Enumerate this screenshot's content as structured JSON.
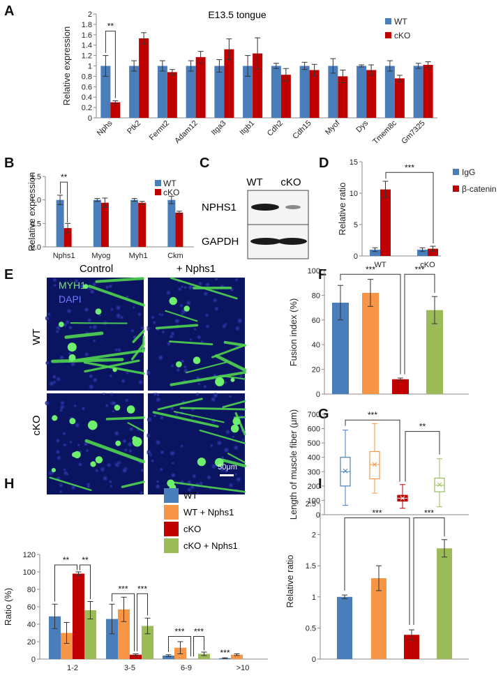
{
  "colors": {
    "wt": "#4a7ebb",
    "cko": "#c00000",
    "wt_nphs1": "#f79646",
    "cko_nphs1": "#9bbb59"
  },
  "panels": {
    "A": "A",
    "B": "B",
    "C": "C",
    "D": "D",
    "E": "E",
    "F": "F",
    "G": "G",
    "H": "H",
    "I": "I"
  },
  "blot": {
    "lane_labels": [
      "WT",
      "cKO"
    ],
    "row_labels": [
      "NPHS1",
      "GAPDH"
    ]
  },
  "micro": {
    "col_labels": [
      "Control",
      "+ Nphs1"
    ],
    "row_labels": [
      "WT",
      "cKO"
    ],
    "stain_labels": [
      "MYH1",
      "DAPI"
    ],
    "scale_bar": "50μm"
  },
  "legend_main": [
    "WT",
    "WT + Nphs1",
    "cKO",
    "cKO + Nphs1"
  ],
  "chart_data": [
    {
      "panel": "A",
      "type": "bar",
      "title": "E13.5 tongue",
      "xlabel": "",
      "ylabel": "Relative expression",
      "ylim": [
        0,
        2
      ],
      "yticks": [
        "0",
        "0.2",
        "0.4",
        "0.6",
        "0.8",
        "1",
        "1.2",
        "1.4",
        "1.6",
        "1.8",
        "2"
      ],
      "categories": [
        "Nphs",
        "Ptk2",
        "Fermt2",
        "Adam12",
        "Itga3",
        "Itgb1",
        "Cdh2",
        "Cdh15",
        "Myof",
        "Dys",
        "Tmem8c",
        "Gm7325"
      ],
      "series": [
        {
          "name": "WT",
          "values": [
            1.0,
            1.0,
            1.0,
            1.0,
            1.0,
            1.0,
            1.0,
            1.0,
            1.0,
            1.0,
            1.0,
            1.0
          ],
          "errors": [
            0.2,
            0.1,
            0.1,
            0.1,
            0.12,
            0.2,
            0.05,
            0.07,
            0.14,
            0.02,
            0.1,
            0.05
          ]
        },
        {
          "name": "cKO",
          "values": [
            0.3,
            1.53,
            0.88,
            1.17,
            1.32,
            1.24,
            0.83,
            0.92,
            0.8,
            0.92,
            0.76,
            1.02
          ],
          "errors": [
            0.03,
            0.11,
            0.05,
            0.11,
            0.2,
            0.3,
            0.12,
            0.11,
            0.12,
            0.1,
            0.06,
            0.06
          ]
        }
      ],
      "annotations": [
        {
          "text": "**",
          "from": 0,
          "to": 0
        }
      ]
    },
    {
      "panel": "B",
      "type": "bar",
      "xlabel": "",
      "ylabel": "Relative expression",
      "ylim": [
        0,
        1.5
      ],
      "yticks": [
        "0.0",
        "0.5",
        "1.0",
        "1.5"
      ],
      "categories": [
        "Nphs1",
        "Myog",
        "Myh1",
        "Ckm"
      ],
      "series": [
        {
          "name": "WT",
          "values": [
            1.0,
            1.0,
            1.0,
            1.0
          ],
          "errors": [
            0.1,
            0.03,
            0.03,
            0.08
          ]
        },
        {
          "name": "cKO",
          "values": [
            0.4,
            0.94,
            0.94,
            0.73
          ],
          "errors": [
            0.1,
            0.1,
            0.03,
            0.03
          ]
        }
      ],
      "annotations": [
        {
          "text": "**"
        }
      ]
    },
    {
      "panel": "D",
      "type": "bar",
      "xlabel": "",
      "ylabel": "Relative ratio",
      "ylim": [
        0,
        15
      ],
      "yticks": [
        "0",
        "5",
        "10",
        "15"
      ],
      "categories": [
        "WT",
        "cKO"
      ],
      "series": [
        {
          "name": "IgG",
          "values": [
            1.0,
            1.0
          ],
          "errors": [
            0.3,
            0.3
          ]
        },
        {
          "name": "β-catenin",
          "values": [
            10.6,
            1.15
          ],
          "errors": [
            1.3,
            0.4
          ]
        }
      ],
      "annotations": [
        {
          "text": "***"
        }
      ]
    },
    {
      "panel": "F",
      "type": "bar",
      "xlabel": "",
      "ylabel": "Fusion index (%)",
      "ylim": [
        0,
        100
      ],
      "yticks": [
        "0",
        "20",
        "40",
        "60",
        "80",
        "100"
      ],
      "categories": [
        "WT",
        "WT + Nphs1",
        "cKO",
        "cKO + Nphs1"
      ],
      "values": [
        74,
        82,
        12,
        68
      ],
      "errors": [
        14,
        11,
        1,
        11
      ],
      "annotations": [
        {
          "text": "***"
        },
        {
          "text": "***"
        }
      ]
    },
    {
      "panel": "G",
      "type": "box",
      "xlabel": "",
      "ylabel": "Length of muscle fiber (μm)",
      "ylim": [
        0,
        700
      ],
      "yticks": [
        "0",
        "100",
        "200",
        "300",
        "400",
        "500",
        "600",
        "700"
      ],
      "categories": [
        "WT",
        "WT + Nphs1",
        "cKO",
        "cKO + Nphs1"
      ],
      "boxes": [
        {
          "min": 65,
          "q1": 200,
          "median": 300,
          "q3": 400,
          "max": 590,
          "mean": 305
        },
        {
          "min": 150,
          "q1": 250,
          "median": 350,
          "q3": 440,
          "max": 635,
          "mean": 350
        },
        {
          "min": 45,
          "q1": 95,
          "median": 115,
          "q3": 135,
          "max": 210,
          "mean": 115
        },
        {
          "min": 55,
          "q1": 160,
          "median": 205,
          "q3": 255,
          "max": 390,
          "mean": 210
        }
      ],
      "annotations": [
        {
          "text": "***"
        },
        {
          "text": "**"
        }
      ]
    },
    {
      "panel": "H",
      "type": "bar",
      "xlabel": "",
      "ylabel": "Ratio (%)",
      "ylim": [
        0,
        120
      ],
      "yticks": [
        "0",
        "20",
        "40",
        "60",
        "80",
        "100",
        "120"
      ],
      "categories": [
        "1-2",
        "3-5",
        "6-9",
        ">10"
      ],
      "series": [
        {
          "name": "WT",
          "values": [
            49,
            46,
            4,
            1
          ],
          "errors": [
            14,
            17,
            1,
            0.5
          ]
        },
        {
          "name": "WT + Nphs1",
          "values": [
            30,
            57,
            13,
            5
          ],
          "errors": [
            12,
            14,
            7,
            1
          ]
        },
        {
          "name": "cKO",
          "values": [
            98,
            5,
            0,
            0
          ],
          "errors": [
            2,
            1,
            0,
            0
          ]
        },
        {
          "name": "cKO + Nphs1",
          "values": [
            56,
            38,
            6,
            0
          ],
          "errors": [
            10,
            9,
            2,
            0
          ]
        }
      ],
      "annotations": [
        "**",
        "**",
        "***",
        "***",
        "***",
        "***",
        "***"
      ]
    },
    {
      "panel": "I",
      "type": "bar",
      "xlabel": "",
      "ylabel": "Relative ratio",
      "ylim": [
        0,
        2.5
      ],
      "yticks": [
        "0",
        "0.5",
        "1",
        "1.5",
        "2",
        "2.5"
      ],
      "categories": [
        "WT",
        "WT + Nphs1",
        "cKO",
        "cKO + Nphs1"
      ],
      "values": [
        1.0,
        1.3,
        0.39,
        1.78
      ],
      "errors": [
        0.03,
        0.2,
        0.08,
        0.14
      ],
      "annotations": [
        {
          "text": "***"
        },
        {
          "text": "***"
        }
      ]
    }
  ]
}
